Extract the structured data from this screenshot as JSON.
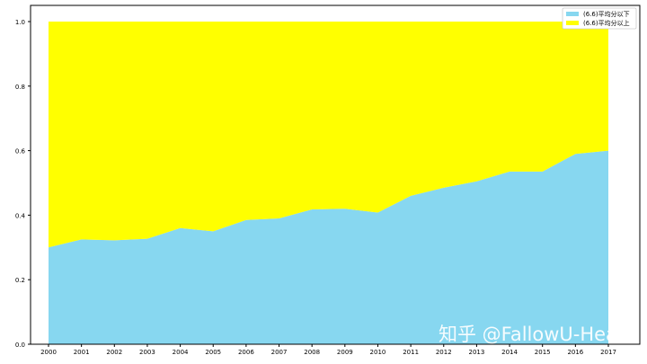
{
  "chart_data": {
    "type": "area",
    "stacked": true,
    "normalized": true,
    "title": "",
    "xlabel": "",
    "ylabel": "",
    "x": [
      2000,
      2001,
      2002,
      2003,
      2004,
      2005,
      2006,
      2007,
      2008,
      2009,
      2010,
      2011,
      2012,
      2013,
      2014,
      2015,
      2016,
      2017
    ],
    "series": [
      {
        "name": "(6.6)平均分以下",
        "color": "#87d7f0",
        "values": [
          0.3,
          0.325,
          0.322,
          0.327,
          0.36,
          0.35,
          0.385,
          0.39,
          0.418,
          0.42,
          0.408,
          0.46,
          0.485,
          0.505,
          0.535,
          0.535,
          0.59,
          0.6
        ]
      },
      {
        "name": "(6.6)平均分以上",
        "color": "#ffff00",
        "values": [
          0.7,
          0.675,
          0.678,
          0.673,
          0.64,
          0.65,
          0.615,
          0.61,
          0.582,
          0.58,
          0.592,
          0.54,
          0.515,
          0.495,
          0.465,
          0.465,
          0.41,
          0.4
        ]
      }
    ],
    "ylim": [
      0,
      1.0
    ],
    "yticks": [
      "0.0",
      "0.2",
      "0.4",
      "0.6",
      "0.8",
      "1.0"
    ],
    "grid": false,
    "legend": "top-right"
  },
  "watermark": "知乎 @FallowU-Heart"
}
